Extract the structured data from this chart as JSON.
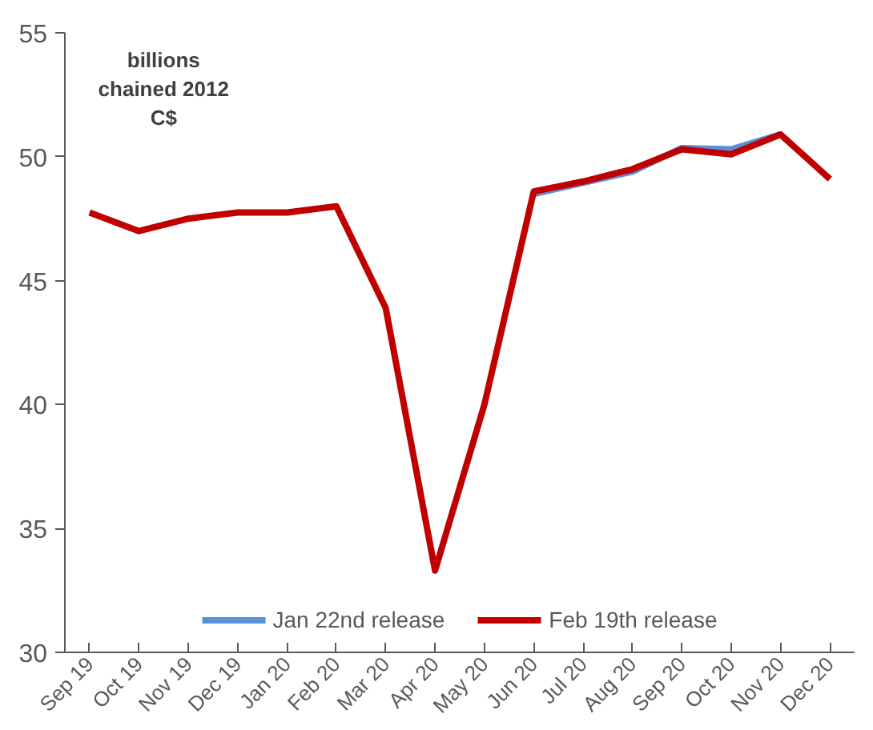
{
  "chart_data": {
    "type": "line",
    "categories": [
      "Sep 19",
      "Oct 19",
      "Nov 19",
      "Dec 19",
      "Jan 20",
      "Feb 20",
      "Mar 20",
      "Apr 20",
      "May 20",
      "Jun 20",
      "Jul 20",
      "Aug 20",
      "Sep 20",
      "Oct 20",
      "Nov 20",
      "Dec 20"
    ],
    "series": [
      {
        "name": "Jan 22nd release",
        "color": "#5b8fd6",
        "values": [
          null,
          null,
          null,
          null,
          null,
          null,
          null,
          null,
          null,
          48.5,
          48.95,
          49.4,
          50.35,
          50.3,
          50.9,
          null
        ]
      },
      {
        "name": "Feb 19th release",
        "color": "#c00000",
        "values": [
          47.75,
          47.0,
          47.5,
          47.75,
          47.75,
          48.0,
          43.9,
          33.3,
          40.0,
          48.6,
          49.0,
          49.5,
          50.3,
          50.1,
          50.9,
          49.1
        ]
      }
    ],
    "ylim": [
      30,
      55
    ],
    "yticks": [
      30,
      35,
      40,
      45,
      50,
      55
    ],
    "annotations": [
      "billions\nchained 2012\nC$"
    ],
    "grid": false,
    "legend": "bottom",
    "marker": "none",
    "line_style": "solid"
  }
}
